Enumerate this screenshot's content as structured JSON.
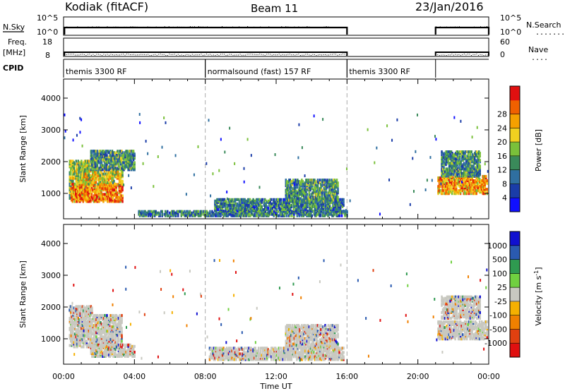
{
  "header": {
    "station": "Kodiak (fitACF)",
    "beam": "Beam 11",
    "date": "23/Jan/2016"
  },
  "strips": {
    "nsky": {
      "label": "N.Sky",
      "ticks": [
        "10^5",
        "10^0"
      ],
      "right_ticks": [
        "10^5",
        "10^0"
      ],
      "right_label": "N.Search",
      "right_dots": "........"
    },
    "freq": {
      "label_top": "Freq.",
      "label_bottom": "[MHz]",
      "ticks": [
        "18",
        "8"
      ],
      "right_ticks": [
        "60",
        "0"
      ],
      "right_label": "Nave",
      "right_dots": "...."
    },
    "cpid": {
      "label": "CPID",
      "segments": [
        {
          "text": "themis 3300 RF",
          "start": 0,
          "end": 8
        },
        {
          "text": "normalsound (fast) 157 RF",
          "start": 8,
          "end": 16
        },
        {
          "text": "themis 3300 RF",
          "start": 16,
          "end": 21
        }
      ]
    }
  },
  "chart_data": [
    {
      "type": "heatmap",
      "panel": "power",
      "ylabel": "Slant Range [km]",
      "yticks": [
        "1000",
        "2000",
        "3000",
        "4000"
      ],
      "ylim": [
        200,
        4600
      ],
      "xlim": [
        0,
        24
      ],
      "colorbar": {
        "label": "Power [dB]",
        "ticks": [
          "4",
          "8",
          "12",
          "16",
          "20",
          "24",
          "28"
        ],
        "colors": [
          "#1010ff",
          "#1a3ca8",
          "#2f6fa0",
          "#3a8a5a",
          "#7ac03a",
          "#f0d020",
          "#f5a000",
          "#f06000",
          "#e01010"
        ]
      },
      "regions": [
        {
          "t0": 0.3,
          "t1": 1.4,
          "r0": 800,
          "r1": 2000,
          "level": 0.5
        },
        {
          "t0": 0.4,
          "t1": 3.3,
          "r0": 700,
          "r1": 1250,
          "level": 0.8
        },
        {
          "t0": 1.0,
          "t1": 3.3,
          "r0": 1250,
          "r1": 1700,
          "level": 0.6
        },
        {
          "t0": 1.5,
          "t1": 4.0,
          "r0": 1700,
          "r1": 2300,
          "level": 0.35
        },
        {
          "t0": 4.2,
          "t1": 16.0,
          "r0": 250,
          "r1": 400,
          "level": 0.3
        },
        {
          "t0": 8.5,
          "t1": 15.8,
          "r0": 400,
          "r1": 800,
          "level": 0.3
        },
        {
          "t0": 12.5,
          "t1": 15.5,
          "r0": 700,
          "r1": 1400,
          "level": 0.35
        },
        {
          "t0": 21.1,
          "t1": 23.9,
          "r0": 950,
          "r1": 1500,
          "level": 0.75
        },
        {
          "t0": 21.3,
          "t1": 23.5,
          "r0": 1500,
          "r1": 2300,
          "level": 0.35
        }
      ]
    },
    {
      "type": "heatmap",
      "panel": "velocity",
      "ylabel": "Slant Range [km]",
      "yticks": [
        "1000",
        "2000",
        "3000",
        "4000"
      ],
      "ylim": [
        200,
        4600
      ],
      "xlim": [
        0,
        24
      ],
      "xticks": [
        "00:00",
        "04:00",
        "08:00",
        "12:00",
        "16:00",
        "20:00",
        "00:00"
      ],
      "xlabel": "Time UT",
      "colorbar": {
        "label": "Velocity [m s^-1]",
        "ticks": [
          "1000",
          "500",
          "100",
          "25",
          "-25",
          "-100",
          "-500",
          "-1000"
        ],
        "colors": [
          "#1010d0",
          "#2a5ab0",
          "#2f9a50",
          "#70d040",
          "#c8c8c0",
          "#f5b000",
          "#f08000",
          "#e04010",
          "#e01010"
        ]
      },
      "regions": [
        {
          "t0": 0.3,
          "t1": 3.3,
          "r0": 700,
          "r1": 1700,
          "level": 0.5
        },
        {
          "t0": 0.3,
          "t1": 1.6,
          "r0": 1700,
          "r1": 2000,
          "level": 0.45
        },
        {
          "t0": 1.5,
          "t1": 4.0,
          "r0": 400,
          "r1": 800,
          "level": 0.3
        },
        {
          "t0": 8.2,
          "t1": 15.8,
          "r0": 300,
          "r1": 700,
          "level": 0.4
        },
        {
          "t0": 12.5,
          "t1": 15.5,
          "r0": 700,
          "r1": 1400,
          "level": 0.5
        },
        {
          "t0": 21.1,
          "t1": 23.9,
          "r0": 950,
          "r1": 1500,
          "level": 0.5
        },
        {
          "t0": 21.3,
          "t1": 23.5,
          "r0": 1600,
          "r1": 2300,
          "level": 0.5
        }
      ]
    }
  ]
}
